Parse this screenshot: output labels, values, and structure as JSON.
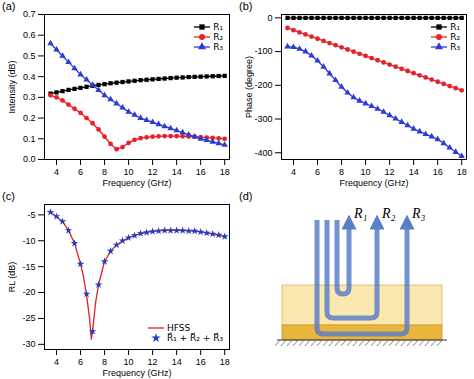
{
  "chart_data": [
    {
      "type": "line",
      "title": "(a)",
      "x_label": "Frequency (GHz)",
      "y_label": "Intensity (dB)",
      "x": [
        3.5,
        4,
        4.5,
        5,
        5.5,
        6,
        6.5,
        7,
        7.5,
        8,
        8.5,
        9,
        9.5,
        10,
        10.5,
        11,
        11.5,
        12,
        12.5,
        13,
        13.5,
        14,
        14.5,
        15,
        15.5,
        16,
        16.5,
        17,
        17.5,
        18
      ],
      "series": [
        {
          "name": "R₁",
          "color": "#000000",
          "marker": "square",
          "line_style": "solid",
          "values": [
            0.318,
            0.324,
            0.33,
            0.336,
            0.341,
            0.346,
            0.351,
            0.356,
            0.36,
            0.364,
            0.368,
            0.371,
            0.374,
            0.377,
            0.38,
            0.383,
            0.385,
            0.387,
            0.389,
            0.391,
            0.393,
            0.395,
            0.396,
            0.398,
            0.399,
            0.4,
            0.401,
            0.402,
            0.403,
            0.404
          ]
        },
        {
          "name": "R₂",
          "color": "#e8222a",
          "marker": "circle",
          "line_style": "solid",
          "values": [
            0.31,
            0.3,
            0.285,
            0.265,
            0.245,
            0.225,
            0.2,
            0.175,
            0.145,
            0.11,
            0.075,
            0.05,
            0.06,
            0.08,
            0.095,
            0.103,
            0.107,
            0.11,
            0.112,
            0.113,
            0.113,
            0.113,
            0.112,
            0.111,
            0.11,
            0.108,
            0.106,
            0.104,
            0.102,
            0.1
          ]
        },
        {
          "name": "R₃",
          "color": "#2b3bd6",
          "marker": "triangle",
          "line_style": "solid",
          "values": [
            0.56,
            0.53,
            0.5,
            0.47,
            0.44,
            0.41,
            0.385,
            0.36,
            0.335,
            0.31,
            0.29,
            0.27,
            0.25,
            0.23,
            0.215,
            0.2,
            0.19,
            0.18,
            0.17,
            0.16,
            0.15,
            0.14,
            0.13,
            0.12,
            0.11,
            0.1,
            0.093,
            0.085,
            0.078,
            0.07
          ]
        }
      ],
      "xlim": [
        3,
        18.4
      ],
      "xticks": [
        4,
        6,
        8,
        10,
        12,
        14,
        16,
        18
      ],
      "ylim": [
        0,
        0.7
      ],
      "yticks": [
        {
          "value": 0,
          "label": "0.0"
        },
        0.1,
        0.2,
        0.3,
        0.4,
        0.5,
        0.6,
        0.7
      ],
      "legend": "top-right"
    },
    {
      "type": "line",
      "title": "(b)",
      "x_label": "Frequency (GHz)",
      "y_label": "Phase (degree)",
      "x": [
        3.5,
        4,
        4.5,
        5,
        5.5,
        6,
        6.5,
        7,
        7.5,
        8,
        8.5,
        9,
        9.5,
        10,
        10.5,
        11,
        11.5,
        12,
        12.5,
        13,
        13.5,
        14,
        14.5,
        15,
        15.5,
        16,
        16.5,
        17,
        17.5,
        18
      ],
      "series": [
        {
          "name": "R₁",
          "color": "#000000",
          "marker": "square",
          "line_style": "solid",
          "values": [
            0,
            0,
            0,
            0,
            0,
            0,
            0,
            0,
            0,
            0,
            0,
            0,
            0,
            0,
            0,
            0,
            0,
            0,
            0,
            0,
            0,
            0,
            0,
            0,
            0,
            0,
            0,
            0,
            0,
            0
          ]
        },
        {
          "name": "R₂",
          "color": "#e8222a",
          "marker": "circle",
          "line_style": "solid",
          "values": [
            -30,
            -36.4,
            -42.8,
            -49.1,
            -55.5,
            -61.9,
            -68.3,
            -74.7,
            -81,
            -87.4,
            -93.8,
            -100.2,
            -106.6,
            -112.9,
            -119.3,
            -125.7,
            -132.1,
            -138.5,
            -144.8,
            -151.2,
            -157.6,
            -164,
            -170.4,
            -176.7,
            -183.1,
            -189.5,
            -195.9,
            -202.3,
            -208.6,
            -215
          ]
        },
        {
          "name": "R₃",
          "color": "#2b3bd6",
          "marker": "triangle",
          "line_style": "solid",
          "values": [
            -85,
            -87,
            -92,
            -100,
            -112,
            -127,
            -145,
            -165,
            -185,
            -205,
            -222,
            -236,
            -246,
            -254,
            -262,
            -270,
            -279,
            -289,
            -299,
            -309,
            -319,
            -329,
            -337,
            -345,
            -352,
            -360,
            -372,
            -385,
            -398,
            -410
          ]
        }
      ],
      "xlim": [
        3,
        18.4
      ],
      "xticks": [
        4,
        6,
        8,
        10,
        12,
        14,
        16,
        18
      ],
      "ylim": [
        -420,
        10
      ],
      "yticks": [
        -400,
        -300,
        -200,
        -100,
        0
      ],
      "legend": "top-right"
    },
    {
      "type": "line",
      "title": "(c)",
      "x_label": "Frequency (GHz)",
      "y_label": "RL (dB)",
      "series": [
        {
          "name": "HFSS",
          "color": "#e0202a",
          "line_style": "solid",
          "x": [
            3.5,
            4,
            4.5,
            5,
            5.5,
            6,
            6.25,
            6.5,
            6.75,
            6.9,
            7,
            7.25,
            7.5,
            8,
            8.5,
            9,
            10,
            11,
            12,
            13,
            14,
            15,
            16,
            17,
            18
          ],
          "values": [
            -4.5,
            -5.3,
            -6.3,
            -8.0,
            -10.5,
            -14.5,
            -17,
            -20.5,
            -25,
            -29,
            -27.5,
            -22,
            -18.5,
            -14,
            -12,
            -10.8,
            -9.4,
            -8.6,
            -8.2,
            -8.0,
            -8.0,
            -8.1,
            -8.3,
            -8.7,
            -9.2
          ]
        },
        {
          "name": "R⃗₁ + R⃗₂ + R⃗₃",
          "color": "#1f3fbf",
          "marker": "star",
          "x": [
            3.5,
            4,
            4.5,
            5,
            5.5,
            6,
            6.5,
            7,
            7.5,
            8,
            8.5,
            9,
            9.5,
            10,
            10.5,
            11,
            11.5,
            12,
            12.5,
            13,
            13.5,
            14,
            14.5,
            15,
            15.5,
            16,
            16.5,
            17,
            17.5,
            18
          ],
          "values": [
            -4.5,
            -5.3,
            -6.3,
            -8.0,
            -10.5,
            -14.5,
            -20.3,
            -27.5,
            -18.5,
            -14,
            -12,
            -10.8,
            -10,
            -9.4,
            -9,
            -8.6,
            -8.4,
            -8.2,
            -8.1,
            -8.0,
            -8.0,
            -8.0,
            -8.0,
            -8.1,
            -8.1,
            -8.3,
            -8.5,
            -8.7,
            -8.9,
            -9.2
          ]
        }
      ],
      "xlim": [
        3,
        18.4
      ],
      "xticks": [
        4,
        6,
        8,
        10,
        12,
        14,
        16,
        18
      ],
      "ylim": [
        -31,
        -3
      ],
      "yticks": [
        -30,
        -25,
        -20,
        -15,
        -10,
        -5
      ],
      "legend": "bottom-right"
    }
  ],
  "diagram": {
    "title": "(d)",
    "labels": [
      "R₁",
      "R₂",
      "R₃"
    ]
  }
}
